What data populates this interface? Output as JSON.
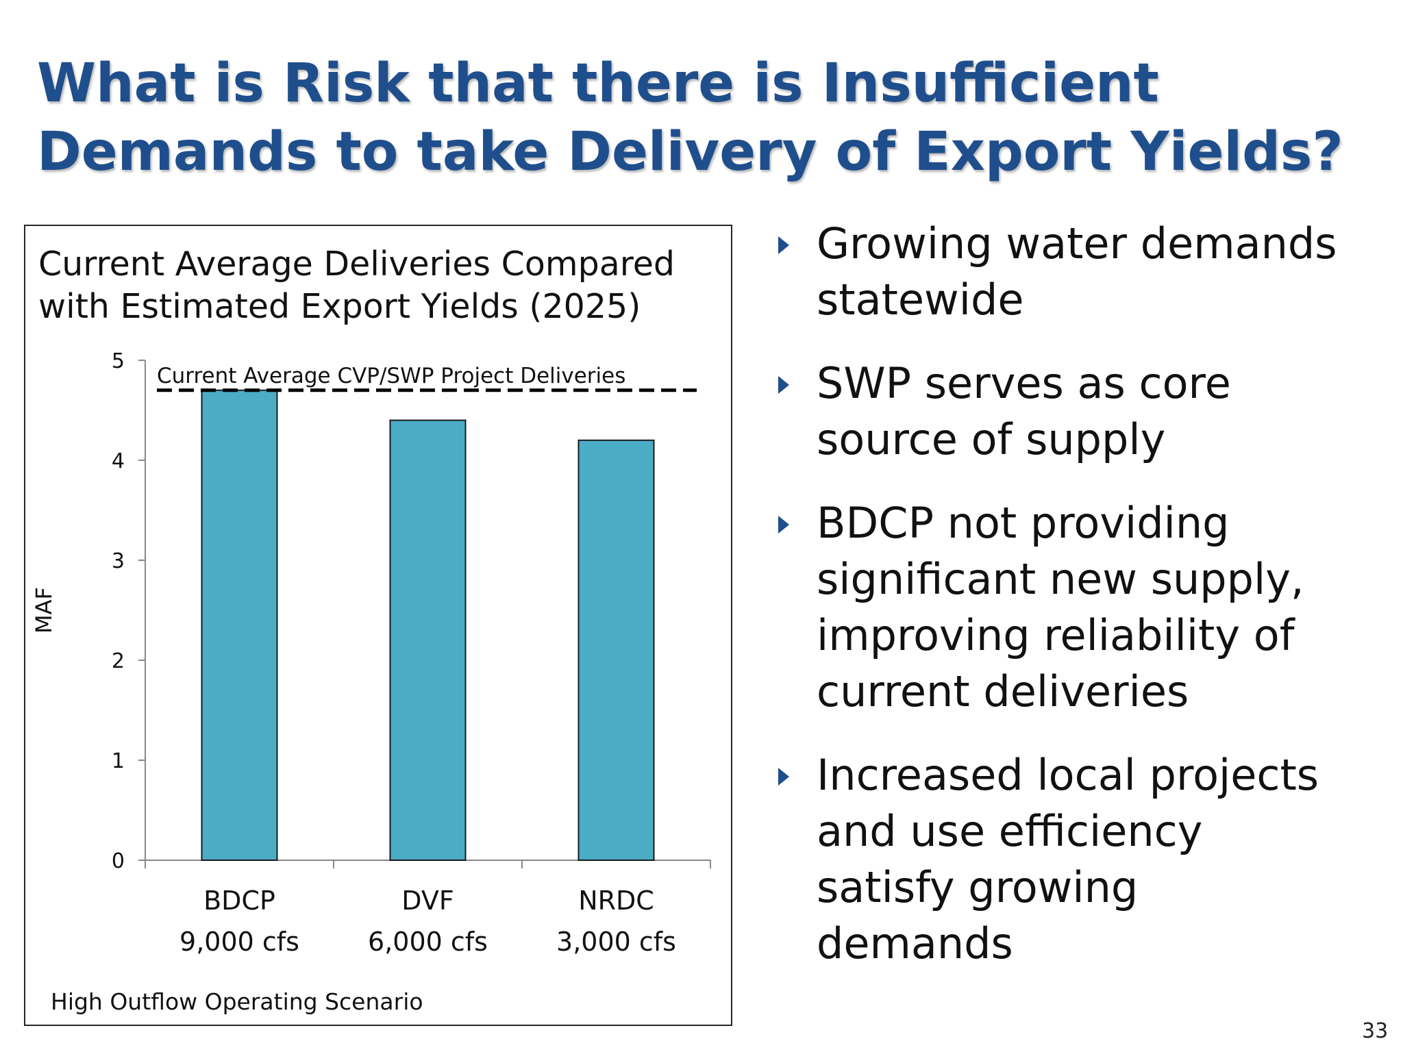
{
  "slide": {
    "title_lines": [
      "What is Risk that there is Insufficient",
      "Demands to take Delivery of Export Yields?"
    ],
    "page_number": "33"
  },
  "chart_data": {
    "type": "bar",
    "title_lines": [
      "Current Average Deliveries Compared",
      "with Estimated Export Yields (2025)"
    ],
    "categories": [
      "BDCP",
      "DVF",
      "NRDC"
    ],
    "category_sublabels": [
      "9,000 cfs",
      "6,000 cfs",
      "3,000 cfs"
    ],
    "values": [
      4.7,
      4.4,
      4.2
    ],
    "ylabel": "MAF",
    "xlabel": "",
    "ylim": [
      0,
      5
    ],
    "yticks": [
      "0",
      "1",
      "2",
      "3",
      "4",
      "5"
    ],
    "grid": false,
    "bar_color": "#4BACC6",
    "reference_line": {
      "label": "Current Average CVP/SWP Project Deliveries",
      "value": 4.7,
      "style": "dashed",
      "color": "#000000"
    },
    "footnote": "High Outflow Operating Scenario"
  },
  "bullets": [
    {
      "lines": [
        "Growing water demands",
        "statewide"
      ],
      "icon": "triangle-bullet-icon"
    },
    {
      "lines": [
        "SWP serves as core",
        "source of supply"
      ],
      "icon": "triangle-bullet-icon"
    },
    {
      "lines": [
        "BDCP not providing",
        "significant new supply,",
        "improving reliability of",
        "current deliveries"
      ],
      "icon": "triangle-bullet-icon"
    },
    {
      "lines": [
        "Increased local projects",
        "and use efficiency",
        "satisfy growing",
        "demands"
      ],
      "icon": "triangle-bullet-icon"
    }
  ],
  "colors": {
    "title": "#1F4E8C",
    "bar": "#4BACC6",
    "bullet": "#1F4E8C"
  }
}
